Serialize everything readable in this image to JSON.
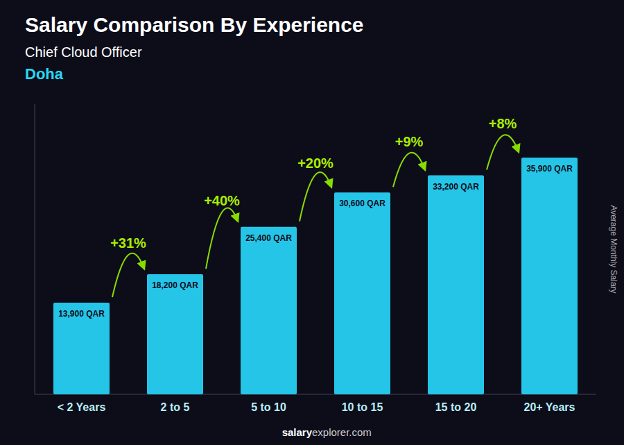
{
  "chart_data": {
    "type": "bar",
    "title": "Salary Comparison By Experience",
    "subtitle": "Chief Cloud Officer",
    "city": "Doha",
    "ylabel": "Average Monthly Salary",
    "footer": [
      "salary",
      "explorer.com"
    ],
    "categories": [
      "< 2 Years",
      "2 to 5",
      "5 to 10",
      "10 to 15",
      "15 to 20",
      "20+ Years"
    ],
    "values": [
      13900,
      18200,
      25400,
      30600,
      33200,
      35900
    ],
    "value_labels": [
      "13,900 QAR",
      "18,200 QAR",
      "25,400 QAR",
      "30,600 QAR",
      "33,200 QAR",
      "35,900 QAR"
    ],
    "data_labels": true,
    "annotations": [
      "+31%",
      "+40%",
      "+20%",
      "+9%",
      "+8%"
    ],
    "color": "#25C5E8",
    "ylim": [
      0,
      44000
    ],
    "tick_labels": "x",
    "grid": false
  }
}
